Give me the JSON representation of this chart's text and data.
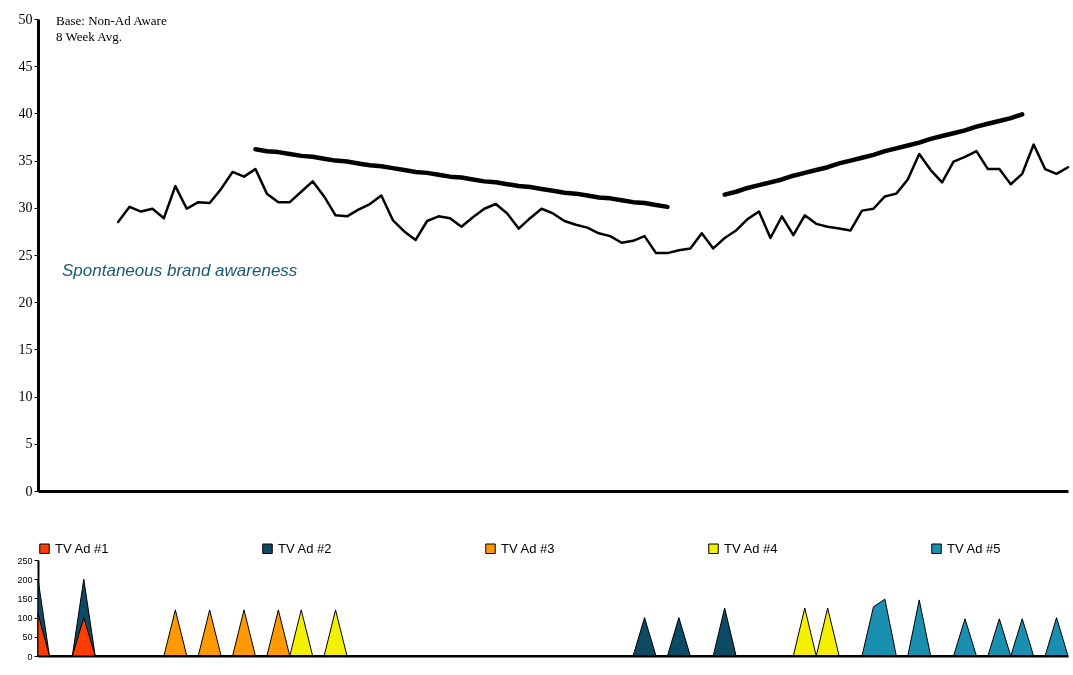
{
  "chart_data": [
    {
      "type": "line",
      "ylim": [
        0,
        50
      ],
      "yticks": [
        0,
        5,
        10,
        15,
        20,
        25,
        30,
        35,
        40,
        45,
        50
      ],
      "tick_labels": "y",
      "grid": false,
      "categories": [
        null,
        null,
        null,
        null,
        null,
        null,
        null,
        null,
        null,
        null,
        null,
        null,
        null,
        null,
        null,
        null,
        null,
        null,
        null,
        null,
        null,
        null,
        null,
        null,
        null,
        null,
        null,
        null,
        null,
        null,
        null,
        null,
        null,
        null,
        null,
        null,
        null,
        null,
        null,
        null,
        null,
        null,
        null,
        null,
        null,
        null,
        null,
        null,
        null,
        null,
        null,
        null,
        null,
        null,
        null,
        null,
        null,
        null,
        null,
        null,
        null,
        null,
        null,
        null,
        null,
        null,
        null,
        null,
        null,
        null,
        null,
        null,
        null,
        null,
        null,
        null,
        null,
        null,
        null,
        null,
        null,
        null,
        null,
        null,
        null,
        null,
        null,
        null,
        null,
        null,
        null
      ],
      "series": [
        {
          "color": "#000000",
          "values": [
            null,
            null,
            null,
            null,
            null,
            null,
            null,
            28.5,
            30.1,
            29.6,
            29.9,
            28.9,
            32.3,
            29.9,
            30.6,
            30.5,
            32.0,
            33.8,
            33.3,
            34.1,
            31.5,
            30.6,
            30.6,
            31.7,
            32.8,
            31.2,
            29.2,
            29.1,
            29.8,
            30.4,
            31.3,
            28.7,
            27.5,
            26.6,
            28.6,
            29.1,
            28.9,
            28.0,
            29.0,
            29.9,
            30.4,
            29.4,
            27.8,
            28.9,
            29.9,
            29.4,
            28.6,
            28.2,
            27.9,
            27.3,
            27.0,
            26.3,
            26.5,
            27.0,
            25.2,
            25.2,
            25.5,
            25.7,
            27.3,
            25.7,
            26.8,
            27.6,
            28.8,
            29.6,
            26.8,
            29.1,
            27.1,
            29.2,
            28.3,
            28.0,
            27.8,
            27.6,
            29.7,
            29.9,
            31.2,
            31.5,
            33.0,
            35.7,
            34.0,
            32.7,
            34.9,
            35.4,
            36.0,
            34.1,
            34.1,
            32.5,
            33.6,
            36.7,
            34.1,
            33.6,
            34.3
          ]
        },
        {
          "type": "line",
          "color": "#000000",
          "values": [
            null,
            null,
            null,
            null,
            null,
            null,
            null,
            null,
            null,
            null,
            null,
            null,
            null,
            null,
            null,
            null,
            null,
            null,
            null,
            36.2,
            36.0,
            35.9,
            35.7,
            35.5,
            35.4,
            35.2,
            35.0,
            34.9,
            34.7,
            34.5,
            34.4,
            34.2,
            34.0,
            33.8,
            33.7,
            33.5,
            33.3,
            33.2,
            33.0,
            32.8,
            32.7,
            32.5,
            32.3,
            32.2,
            32.0,
            31.8,
            31.6,
            31.5,
            31.3,
            31.1,
            31.0,
            30.8,
            30.6,
            30.5,
            30.3,
            30.1,
            null,
            null,
            null,
            null,
            null,
            null,
            null,
            null,
            null,
            null,
            null,
            null,
            null,
            null,
            null,
            null,
            null,
            null,
            null,
            null,
            null,
            null,
            null,
            null,
            null,
            null,
            null,
            null,
            null,
            null,
            null,
            null,
            null,
            null,
            null
          ]
        },
        {
          "type": "line",
          "color": "#000000",
          "values": [
            null,
            null,
            null,
            null,
            null,
            null,
            null,
            null,
            null,
            null,
            null,
            null,
            null,
            null,
            null,
            null,
            null,
            null,
            null,
            null,
            null,
            null,
            null,
            null,
            null,
            null,
            null,
            null,
            null,
            null,
            null,
            null,
            null,
            null,
            null,
            null,
            null,
            null,
            null,
            null,
            null,
            null,
            null,
            null,
            null,
            null,
            null,
            null,
            null,
            null,
            null,
            null,
            null,
            null,
            null,
            null,
            null,
            null,
            null,
            null,
            31.4,
            31.7,
            32.1,
            32.4,
            32.7,
            33.0,
            33.4,
            33.7,
            34.0,
            34.3,
            34.7,
            35.0,
            35.3,
            35.6,
            36.0,
            36.3,
            36.6,
            36.9,
            37.3,
            37.6,
            37.9,
            38.2,
            38.6,
            38.9,
            39.2,
            39.5,
            39.9,
            null,
            null,
            null,
            null
          ]
        }
      ],
      "annotations": [
        "Base: Non-Ad Aware",
        "8 Week Avg.",
        "Spontaneous brand awareness"
      ]
    },
    {
      "type": "area",
      "ylim": [
        0,
        250
      ],
      "yticks": [
        0,
        50,
        100,
        150,
        200,
        250
      ],
      "tick_labels": "y",
      "grid": false,
      "legend": "top",
      "categories": [
        null,
        null,
        null,
        null,
        null,
        null,
        null,
        null,
        null,
        null,
        null,
        null,
        null,
        null,
        null,
        null,
        null,
        null,
        null,
        null,
        null,
        null,
        null,
        null,
        null,
        null,
        null,
        null,
        null,
        null,
        null,
        null,
        null,
        null,
        null,
        null,
        null,
        null,
        null,
        null,
        null,
        null,
        null,
        null,
        null,
        null,
        null,
        null,
        null,
        null,
        null,
        null,
        null,
        null,
        null,
        null,
        null,
        null,
        null,
        null,
        null,
        null,
        null,
        null,
        null,
        null,
        null,
        null,
        null,
        null,
        null,
        null,
        null,
        null,
        null,
        null,
        null,
        null,
        null,
        null,
        null,
        null,
        null,
        null,
        null,
        null,
        null,
        null,
        null,
        null,
        null
      ],
      "series": [
        {
          "name": "TV Ad #1",
          "color": "#ff3c00",
          "values": [
            110,
            0,
            0,
            0,
            100,
            0,
            0,
            0,
            0,
            0,
            0,
            0,
            0,
            0,
            0,
            0,
            0,
            0,
            0,
            0,
            0,
            0,
            0,
            0,
            0,
            0,
            0,
            0,
            0,
            0,
            0,
            0,
            0,
            0,
            0,
            0,
            0,
            0,
            0,
            0,
            0,
            0,
            0,
            0,
            0,
            0,
            0,
            0,
            0,
            0,
            0,
            0,
            0,
            0,
            0,
            0,
            0,
            0,
            0,
            0,
            0,
            0,
            0,
            0,
            0,
            0,
            0,
            0,
            0,
            0,
            0,
            0,
            0,
            0,
            0,
            0,
            0,
            0,
            0,
            0,
            0,
            0,
            0,
            0,
            0,
            0,
            0,
            0,
            0,
            0,
            0
          ]
        },
        {
          "name": "TV Ad #2",
          "color": "#0d4a63",
          "values": [
            200,
            0,
            0,
            0,
            200,
            0,
            0,
            0,
            0,
            0,
            0,
            0,
            0,
            0,
            0,
            0,
            0,
            0,
            0,
            0,
            0,
            0,
            0,
            0,
            0,
            0,
            0,
            0,
            0,
            0,
            0,
            0,
            0,
            0,
            0,
            0,
            0,
            0,
            0,
            0,
            0,
            0,
            0,
            0,
            0,
            0,
            0,
            0,
            0,
            0,
            0,
            0,
            0,
            100,
            0,
            0,
            100,
            0,
            0,
            0,
            125,
            0,
            0,
            0,
            0,
            0,
            0,
            0,
            0,
            0,
            0,
            0,
            0,
            0,
            0,
            0,
            0,
            0,
            0,
            0,
            0,
            0,
            0,
            0,
            0,
            0,
            0,
            0,
            0,
            0,
            0
          ]
        },
        {
          "name": "TV Ad #3",
          "color": "#ff9900",
          "values": [
            0,
            0,
            0,
            0,
            0,
            0,
            0,
            0,
            0,
            0,
            0,
            0,
            120,
            0,
            0,
            120,
            0,
            0,
            120,
            0,
            0,
            120,
            0,
            0,
            0,
            0,
            0,
            0,
            0,
            0,
            0,
            0,
            0,
            0,
            0,
            0,
            0,
            0,
            0,
            0,
            0,
            0,
            0,
            0,
            0,
            0,
            0,
            0,
            0,
            0,
            0,
            0,
            0,
            0,
            0,
            0,
            0,
            0,
            0,
            0,
            0,
            0,
            0,
            0,
            0,
            0,
            0,
            0,
            0,
            0,
            0,
            0,
            0,
            0,
            0,
            0,
            0,
            0,
            0,
            0,
            0,
            0,
            0,
            0,
            0,
            0,
            0,
            0,
            0,
            0,
            0
          ]
        },
        {
          "name": "TV Ad #4",
          "color": "#f5f000",
          "values": [
            0,
            0,
            0,
            0,
            0,
            0,
            0,
            0,
            0,
            0,
            0,
            0,
            0,
            0,
            0,
            0,
            0,
            0,
            0,
            0,
            0,
            0,
            0,
            120,
            0,
            0,
            120,
            0,
            0,
            0,
            0,
            0,
            0,
            0,
            0,
            0,
            0,
            0,
            0,
            0,
            0,
            0,
            0,
            0,
            0,
            0,
            0,
            0,
            0,
            0,
            0,
            0,
            0,
            0,
            0,
            0,
            0,
            0,
            0,
            0,
            0,
            0,
            0,
            0,
            0,
            0,
            0,
            125,
            0,
            125,
            0,
            0,
            0,
            0,
            0,
            0,
            0,
            0,
            0,
            0,
            0,
            0,
            0,
            0,
            0,
            0,
            0,
            0,
            0,
            0,
            0
          ]
        },
        {
          "name": "TV Ad #5",
          "color": "#1a8fb0",
          "values": [
            0,
            0,
            0,
            0,
            0,
            0,
            0,
            0,
            0,
            0,
            0,
            0,
            0,
            0,
            0,
            0,
            0,
            0,
            0,
            0,
            0,
            0,
            0,
            0,
            0,
            0,
            0,
            0,
            0,
            0,
            0,
            0,
            0,
            0,
            0,
            0,
            0,
            0,
            0,
            0,
            0,
            0,
            0,
            0,
            0,
            0,
            0,
            0,
            0,
            0,
            0,
            0,
            0,
            0,
            0,
            0,
            0,
            0,
            0,
            0,
            0,
            0,
            0,
            0,
            0,
            0,
            0,
            0,
            0,
            0,
            0,
            0,
            0,
            128,
            148,
            0,
            0,
            146,
            0,
            0,
            0,
            97,
            0,
            0,
            97,
            0,
            97,
            0,
            0,
            100,
            0
          ]
        }
      ]
    }
  ]
}
